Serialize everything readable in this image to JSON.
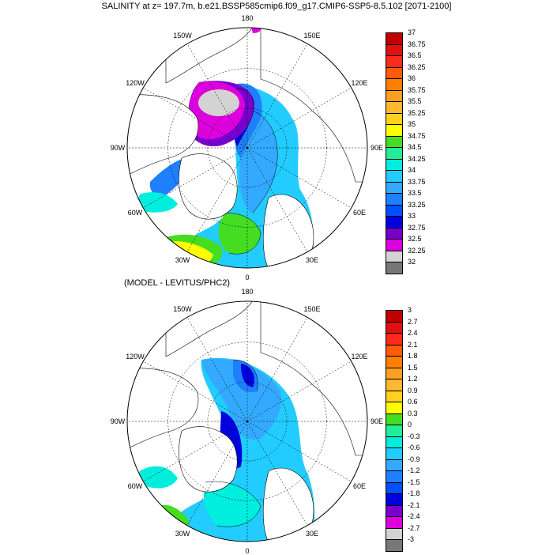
{
  "title": "SALINITY at z= 197.7m, b.e21.BSSP585cmip6.f09_g17.CMIP6-SSP5-8.5.102 [2071-2100]",
  "panels": [
    {
      "subtitle": "",
      "lon_labels": [
        "180",
        "150E",
        "120E",
        "90E",
        "60E",
        "30E",
        "0",
        "30W",
        "60W",
        "90W",
        "120W",
        "150W"
      ],
      "legend": {
        "labels": [
          "37",
          "36.75",
          "36.5",
          "36.25",
          "36",
          "35.75",
          "35.5",
          "35.25",
          "35",
          "34.75",
          "34.5",
          "34.25",
          "34",
          "33.75",
          "33.5",
          "33.25",
          "33",
          "32.75",
          "32.5",
          "32.25",
          "32"
        ],
        "colors": [
          "#c00000",
          "#e01010",
          "#ff2a1a",
          "#ff5a0a",
          "#ff7f00",
          "#ff9f20",
          "#ffb830",
          "#ffd020",
          "#ffff00",
          "#44dd22",
          "#22ee99",
          "#00eedd",
          "#22ccff",
          "#33aaff",
          "#1e7fff",
          "#0050ff",
          "#0000e0",
          "#7700cc",
          "#dd00dd",
          "#d3d3d3",
          "#777777"
        ]
      }
    },
    {
      "subtitle": "(MODEL - LEVITUS/PHC2)",
      "lon_labels": [
        "180",
        "150E",
        "120E",
        "90E",
        "60E",
        "30E",
        "0",
        "30W",
        "60W",
        "90W",
        "120W",
        "150W"
      ],
      "legend": {
        "labels": [
          "3",
          "2.7",
          "2.4",
          "2.1",
          "1.8",
          "1.5",
          "1.2",
          "0.9",
          "0.6",
          "0.3",
          "0",
          "-0.3",
          "-0.6",
          "-0.9",
          "-1.2",
          "-1.5",
          "-1.8",
          "-2.1",
          "-2.4",
          "-2.7",
          "-3"
        ],
        "colors": [
          "#c00000",
          "#e01010",
          "#ff2a1a",
          "#ff5a0a",
          "#ff7f00",
          "#ff9f20",
          "#ffb830",
          "#ffd020",
          "#ffff00",
          "#44dd22",
          "#22ee99",
          "#00eedd",
          "#22ccff",
          "#33aaff",
          "#1e7fff",
          "#0050ff",
          "#0000e0",
          "#7700cc",
          "#dd00dd",
          "#d3d3d3",
          "#777777"
        ]
      }
    }
  ]
}
